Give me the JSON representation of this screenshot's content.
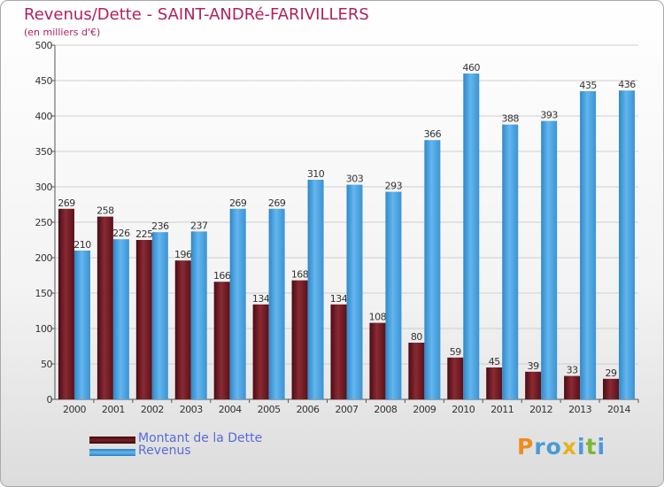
{
  "chart_data": {
    "type": "bar",
    "title": "Revenus/Dette - SAINT-ANDRé-FARIVILLERS",
    "subtitle": "(en milliers d'€)",
    "categories": [
      "2000",
      "2001",
      "2002",
      "2003",
      "2004",
      "2005",
      "2006",
      "2007",
      "2008",
      "2009",
      "2010",
      "2011",
      "2012",
      "2013",
      "2014"
    ],
    "series": [
      {
        "name": "Montant de la Dette",
        "color": "#7a1f28",
        "values": [
          269,
          258,
          225,
          196,
          166,
          134,
          168,
          134,
          108,
          80,
          59,
          45,
          39,
          33,
          29
        ]
      },
      {
        "name": "Revenus",
        "color": "#4aa3e2",
        "values": [
          210,
          226,
          236,
          237,
          269,
          269,
          310,
          303,
          293,
          366,
          460,
          388,
          393,
          435,
          436
        ]
      }
    ],
    "ylim": [
      0,
      500
    ],
    "yticks": [
      0,
      50,
      100,
      150,
      200,
      250,
      300,
      350,
      400,
      450,
      500
    ],
    "grid": true,
    "legend": "bottom-left",
    "xlabel": "",
    "ylabel": ""
  },
  "logo": {
    "letters": [
      "P",
      "r",
      "o",
      "x",
      "i",
      "t",
      "i"
    ],
    "colors": [
      "#f08b1f",
      "#4a9ad8",
      "#4a9ad8",
      "#e8b21c",
      "#4a9ad8",
      "#7ab73a",
      "#4a9ad8"
    ]
  }
}
